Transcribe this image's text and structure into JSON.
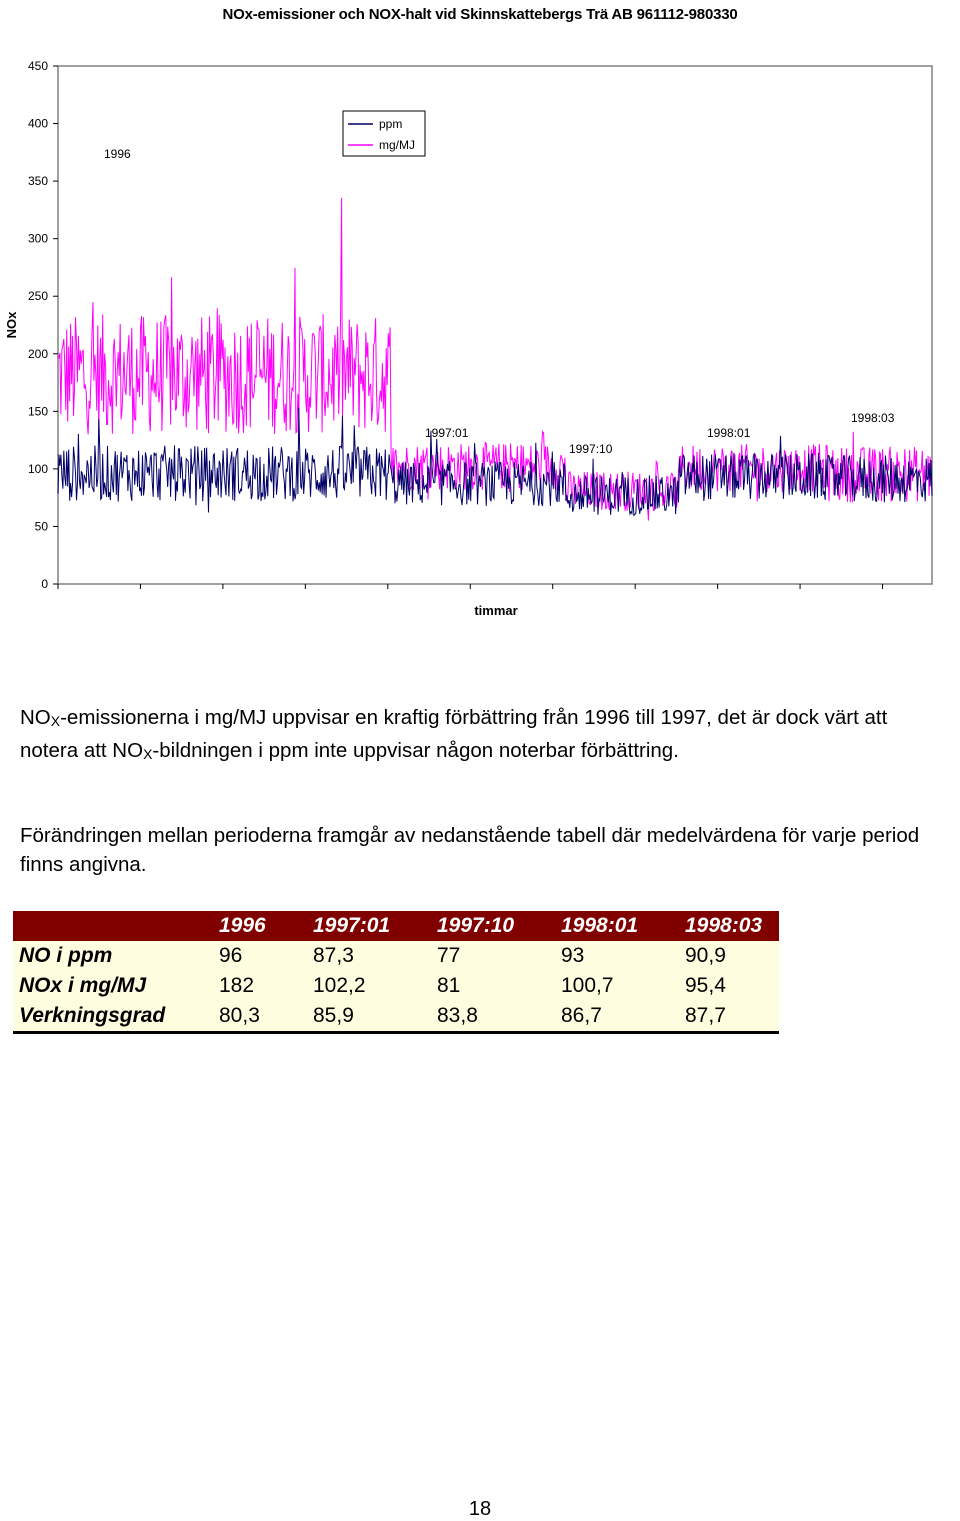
{
  "chart_data": {
    "type": "line",
    "title": "NOx-emissioner och NOX-halt vid Skinnskattebergs Trä AB 961112-980330",
    "xlabel": "timmar",
    "ylabel": "NOx",
    "ylim": [
      0,
      450
    ],
    "yticks": [
      0,
      50,
      100,
      150,
      200,
      250,
      300,
      350,
      400,
      450
    ],
    "legend_position": "top-center",
    "series": [
      {
        "name": "ppm",
        "color": "#000066"
      },
      {
        "name": "mg/MJ",
        "color": "#ff00ff"
      }
    ],
    "period_labels": [
      "1996",
      "1997:01",
      "1997:10",
      "1998:01",
      "1998:03"
    ],
    "period_approx_levels": {
      "ppm": [
        96,
        87.3,
        77,
        93,
        90.9
      ],
      "mg/MJ": [
        182,
        102.2,
        81,
        100.7,
        95.4
      ]
    }
  },
  "paragraph1": {
    "p1": "NO",
    "sub1": "X",
    "p2": "-emissionerna i mg/MJ uppvisar en kraftig förbättring från 1996 till 1997, det är dock värt att notera att NO",
    "sub2": "X",
    "p3": "-bildningen i ppm inte uppvisar någon noterbar förbättring."
  },
  "paragraph2": "Förändringen mellan perioderna framgår av nedanstående tabell där medelvärdena för varje period finns angivna.",
  "table": {
    "headers": [
      "",
      "1996",
      "1997:01",
      "1997:10",
      "1998:01",
      "1998:03"
    ],
    "rows": [
      {
        "label": "NO i ppm",
        "values": [
          "96",
          "87,3",
          "77",
          "93",
          "90,9"
        ]
      },
      {
        "label": "NOx i mg/MJ",
        "values": [
          "182",
          "102,2",
          "81",
          "100,7",
          "95,4"
        ]
      },
      {
        "label": "Verkningsgrad",
        "values": [
          "80,3",
          "85,9",
          "83,8",
          "86,7",
          "87,7"
        ]
      }
    ]
  },
  "page_number": "18"
}
